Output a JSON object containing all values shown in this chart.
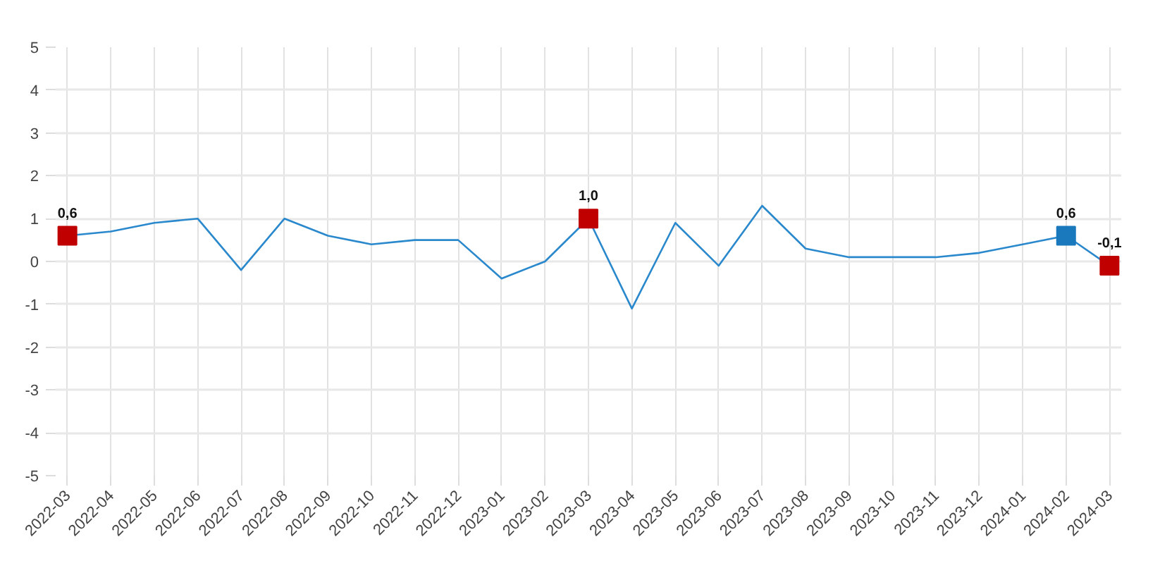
{
  "chart_data": {
    "type": "line",
    "categories": [
      "2022-03",
      "2022-04",
      "2022-05",
      "2022-06",
      "2022-07",
      "2022-08",
      "2022-09",
      "2022-10",
      "2022-11",
      "2022-12",
      "2023-01",
      "2023-02",
      "2023-03",
      "2023-04",
      "2023-05",
      "2023-06",
      "2023-07",
      "2023-08",
      "2023-09",
      "2023-10",
      "2023-11",
      "2023-12",
      "2024-01",
      "2024-02",
      "2024-03"
    ],
    "series": [
      {
        "color": "#2a88cc",
        "values": [
          0.6,
          0.7,
          0.9,
          1.0,
          -0.2,
          1.0,
          0.6,
          0.4,
          0.5,
          0.5,
          -0.4,
          0.0,
          1.0,
          -1.1,
          0.9,
          -0.1,
          1.3,
          0.3,
          0.1,
          0.1,
          0.1,
          0.2,
          0.4,
          0.6,
          -0.1
        ]
      },
      {
        "type": "scatter",
        "marker": "square",
        "values": [
          0.6,
          null,
          null,
          null,
          null,
          null,
          null,
          null,
          null,
          null,
          null,
          null,
          1.0,
          null,
          null,
          null,
          null,
          null,
          null,
          null,
          null,
          null,
          null,
          0.6,
          -0.1
        ],
        "colors": [
          "#c00000",
          null,
          null,
          null,
          null,
          null,
          null,
          null,
          null,
          null,
          null,
          null,
          "#c00000",
          null,
          null,
          null,
          null,
          null,
          null,
          null,
          null,
          null,
          null,
          "#1a78bd",
          "#c00000"
        ],
        "value_labels": [
          "0,6",
          null,
          null,
          null,
          null,
          null,
          null,
          null,
          null,
          null,
          null,
          null,
          "1,0",
          null,
          null,
          null,
          null,
          null,
          null,
          null,
          null,
          null,
          null,
          "0,6",
          "-0,1"
        ]
      }
    ],
    "ylim": [
      -5,
      5
    ],
    "yticks": [
      -5,
      -4,
      -3,
      -2,
      -1,
      0,
      1,
      2,
      3,
      4,
      5
    ],
    "grid": true
  }
}
